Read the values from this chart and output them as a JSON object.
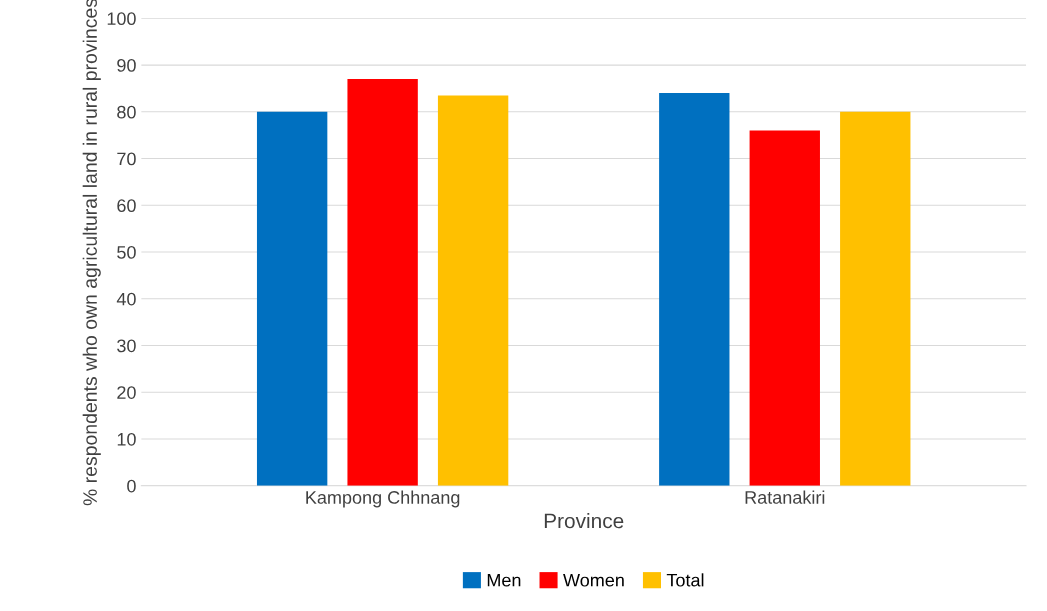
{
  "chart_data": {
    "type": "bar",
    "xlabel": "Province",
    "ylabel": "% respondents who own agricultural land in rural provinces",
    "categories": [
      "Kampong Chhnang",
      "Ratanakiri"
    ],
    "series": [
      {
        "name": "Men",
        "color": "#0070c0",
        "values": [
          80,
          84
        ]
      },
      {
        "name": "Women",
        "color": "#ff0000",
        "values": [
          87,
          76
        ]
      },
      {
        "name": "Total",
        "color": "#ffc000",
        "values": [
          83.5,
          80
        ]
      }
    ],
    "ylim": [
      0,
      100
    ],
    "yticks": [
      0,
      10,
      20,
      30,
      40,
      50,
      60,
      70,
      80,
      90,
      100
    ],
    "grid": "y",
    "legend": "bottom"
  }
}
